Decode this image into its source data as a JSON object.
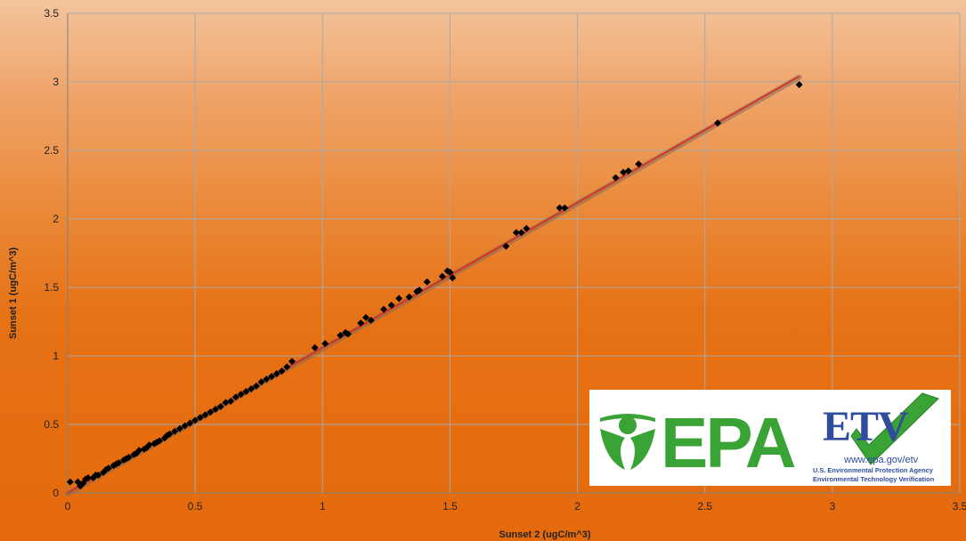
{
  "chart_data": {
    "type": "scatter",
    "title": "",
    "xlabel": "Sunset 2 (ugC/m^3)",
    "ylabel": "Sunset 1 (ugC/m^3)",
    "xlim": [
      0,
      3.5
    ],
    "ylim": [
      0,
      3.5
    ],
    "xticks": [
      "0",
      "0.5",
      "1",
      "1.5",
      "2",
      "2.5",
      "3",
      "3.5"
    ],
    "yticks": [
      "0",
      "0.5",
      "1",
      "1.5",
      "2",
      "2.5",
      "3",
      "3.5"
    ],
    "grid": true,
    "legend": "none",
    "marker_color": "#000000",
    "trendline_color": "#e0241b",
    "trendline": {
      "x": [
        0,
        2.87
      ],
      "y": [
        0,
        3.04
      ]
    },
    "x": [
      0.01,
      0.04,
      0.05,
      0.06,
      0.07,
      0.08,
      0.1,
      0.11,
      0.12,
      0.14,
      0.15,
      0.16,
      0.18,
      0.19,
      0.2,
      0.22,
      0.23,
      0.24,
      0.26,
      0.27,
      0.28,
      0.3,
      0.31,
      0.32,
      0.34,
      0.35,
      0.36,
      0.38,
      0.39,
      0.4,
      0.42,
      0.44,
      0.46,
      0.48,
      0.5,
      0.52,
      0.54,
      0.56,
      0.58,
      0.6,
      0.62,
      0.64,
      0.66,
      0.68,
      0.7,
      0.72,
      0.74,
      0.76,
      0.78,
      0.8,
      0.82,
      0.84,
      0.86,
      0.88,
      0.97,
      1.01,
      1.07,
      1.09,
      1.1,
      1.15,
      1.17,
      1.19,
      1.24,
      1.27,
      1.3,
      1.34,
      1.37,
      1.38,
      1.41,
      1.47,
      1.49,
      1.5,
      1.51,
      1.72,
      1.76,
      1.78,
      1.8,
      1.93,
      1.95,
      2.15,
      2.18,
      2.2,
      2.24,
      2.55,
      2.87
    ],
    "y": [
      0.08,
      0.08,
      0.05,
      0.07,
      0.1,
      0.11,
      0.11,
      0.13,
      0.13,
      0.15,
      0.17,
      0.18,
      0.2,
      0.21,
      0.22,
      0.24,
      0.25,
      0.26,
      0.28,
      0.29,
      0.31,
      0.32,
      0.33,
      0.35,
      0.36,
      0.37,
      0.38,
      0.4,
      0.42,
      0.43,
      0.45,
      0.47,
      0.49,
      0.51,
      0.53,
      0.55,
      0.57,
      0.59,
      0.61,
      0.63,
      0.66,
      0.67,
      0.7,
      0.72,
      0.74,
      0.76,
      0.78,
      0.81,
      0.83,
      0.85,
      0.87,
      0.89,
      0.92,
      0.96,
      1.06,
      1.09,
      1.15,
      1.17,
      1.16,
      1.24,
      1.28,
      1.26,
      1.34,
      1.37,
      1.42,
      1.43,
      1.47,
      1.48,
      1.54,
      1.58,
      1.62,
      1.61,
      1.57,
      1.8,
      1.9,
      1.9,
      1.93,
      2.08,
      2.08,
      2.3,
      2.34,
      2.35,
      2.4,
      2.7,
      2.98
    ]
  },
  "logo": {
    "epa": "EPA",
    "etv": "ETV",
    "url": "www.epa.gov/etv",
    "line1": "U.S. Environmental Protection Agency",
    "line2": "Environmental Technology Verification",
    "epa_color": "#3aa336",
    "etv_color": "#2f4d9c",
    "check_color": "#3aa336"
  }
}
